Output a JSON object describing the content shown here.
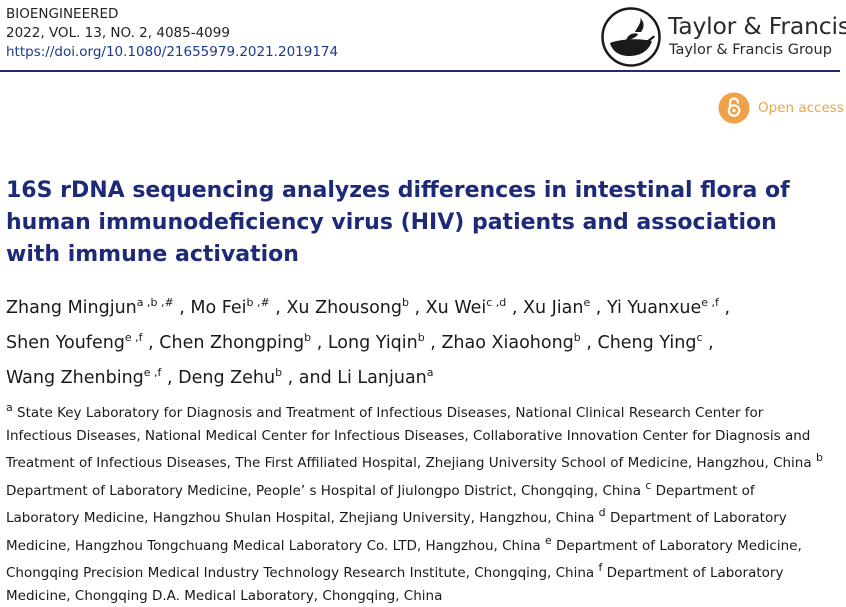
{
  "journal": {
    "name": "BIOENGINEERED",
    "citation": "2022, VOL. 13, NO. 2, 4085-4099",
    "doi": "https://doi.org/10.1080/21655979.2021.2019174"
  },
  "publisher": {
    "name": "Taylor & Francis",
    "group": "Taylor & Francis Group",
    "logo_icon": "taylor-francis-lamp-logo"
  },
  "access": {
    "label": "Open access",
    "color": "#f0a24a"
  },
  "accent_color": "#1d2a78",
  "article": {
    "title": "16S rDNA sequencing analyzes differences in intestinal flora of human immunodeficiency virus (HIV) patients and association with immune activation"
  },
  "authors": [
    {
      "name": "Zhang Mingjun",
      "sup": "a ,b ,#",
      "sep": " , "
    },
    {
      "name": "Mo Fei",
      "sup": "b ,#",
      "sep": " , "
    },
    {
      "name": "Xu Zhousong",
      "sup": "b",
      "sep": " , "
    },
    {
      "name": "Xu Wei",
      "sup": "c ,d",
      "sep": " , "
    },
    {
      "name": "Xu Jian",
      "sup": "e",
      "sep": " , "
    },
    {
      "name": "Yi Yuanxue",
      "sup": "e ,f",
      "sep": " , "
    },
    {
      "name": "Shen Youfeng",
      "sup": "e ,f",
      "sep": " , "
    },
    {
      "name": "Chen Zhongping",
      "sup": "b",
      "sep": " , "
    },
    {
      "name": "Long Yiqin",
      "sup": "b",
      "sep": " , "
    },
    {
      "name": "Zhao Xiaohong",
      "sup": "b",
      "sep": " , "
    },
    {
      "name": "Cheng Ying",
      "sup": "c",
      "sep": " , "
    },
    {
      "name": "Wang Zhenbing",
      "sup": "e ,f",
      "sep": " , "
    },
    {
      "name": "Deng Zehu",
      "sup": "b",
      "sep": " , and "
    },
    {
      "name": "Li Lanjuan",
      "sup": "a",
      "sep": ""
    }
  ],
  "affiliations": [
    {
      "label": "a",
      "text": " State Key Laboratory for Diagnosis and Treatment of Infectious Diseases, National Clinical Research Center for Infectious Diseases, National Medical Center for Infectious Diseases, Collaborative Innovation Center for Diagnosis and Treatment of Infectious Diseases, The First Affiliated Hospital, Zhejiang University School of Medicine, Hangzhou, China "
    },
    {
      "label": "b",
      "text": " Department of Laboratory Medicine, People’ s Hospital of Jiulongpo District, Chongqing, China "
    },
    {
      "label": "c",
      "text": " Department of Laboratory Medicine, Hangzhou Shulan Hospital, Zhejiang University, Hangzhou, China "
    },
    {
      "label": "d",
      "text": " Department of Laboratory Medicine, Hangzhou Tongchuang Medical Laboratory Co. LTD, Hangzhou, China "
    },
    {
      "label": "e",
      "text": " Department of Laboratory Medicine, Chongqing Precision Medical Industry Technology Research Institute, Chongqing, China "
    },
    {
      "label": "f",
      "text": " Department of Laboratory Medicine, Chongqing D.A. Medical Laboratory, Chongqing, China"
    }
  ]
}
